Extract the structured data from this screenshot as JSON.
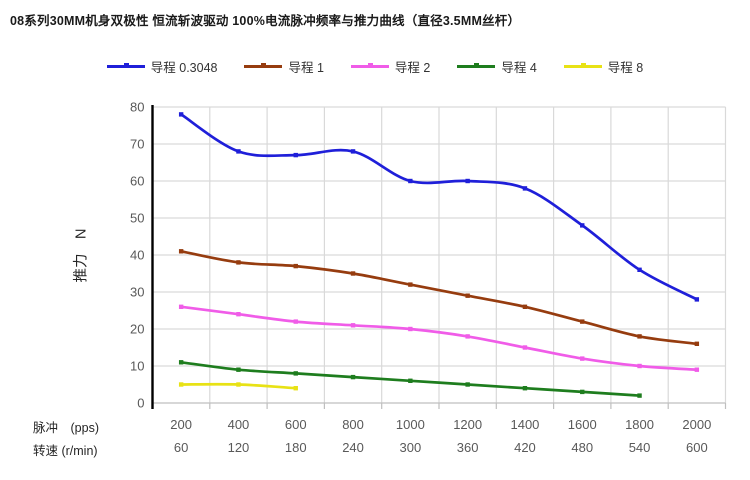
{
  "title": "08系列30MM机身双极性 恒流斩波驱动 100%电流脉冲频率与推力曲线（直径3.5MM丝杆）",
  "colors": {
    "gridline": "#d9d9d9",
    "x_axis_line": "#bfbfbf",
    "y_axis_line": "#000000",
    "tick_label": "#595959",
    "title_text": "#1a1a1a"
  },
  "chart_data": {
    "type": "line",
    "title": "08系列30MM机身双极性 恒流斩波驱动 100%电流脉冲频率与推力曲线（直径3.5MM丝杆）",
    "ylabel": "推力　N",
    "ylim": [
      0,
      80
    ],
    "y_ticks": [
      0,
      10,
      20,
      30,
      40,
      50,
      60,
      70,
      80
    ],
    "grid": true,
    "legend_position": "top",
    "line_style": "smooth",
    "x_rows": [
      {
        "label": "脉冲　(pps)",
        "values": [
          "200",
          "400",
          "600",
          "800",
          "1000",
          "1200",
          "1400",
          "1600",
          "1800",
          "2000"
        ]
      },
      {
        "label": "转速 (r/min)",
        "values": [
          "60",
          "120",
          "180",
          "240",
          "300",
          "360",
          "420",
          "480",
          "540",
          "600"
        ]
      }
    ],
    "series": [
      {
        "name": "导程 0.3048",
        "color": "#1f1fd9",
        "values": [
          78,
          68,
          67,
          68,
          60,
          60,
          58,
          48,
          36,
          28
        ]
      },
      {
        "name": "导程 1",
        "color": "#963c0f",
        "values": [
          41,
          38,
          37,
          35,
          32,
          29,
          26,
          22,
          18,
          16
        ]
      },
      {
        "name": "导程 2",
        "color": "#f05ce8",
        "values": [
          26,
          24,
          22,
          21,
          20,
          18,
          15,
          12,
          10,
          9
        ]
      },
      {
        "name": "导程 4",
        "color": "#1e7d1e",
        "values": [
          11,
          9,
          8,
          7,
          6,
          5,
          4,
          3,
          2,
          null
        ]
      },
      {
        "name": "导程 8",
        "color": "#e8e215",
        "values": [
          5,
          5,
          4,
          null,
          null,
          null,
          null,
          null,
          null,
          null
        ]
      }
    ]
  }
}
